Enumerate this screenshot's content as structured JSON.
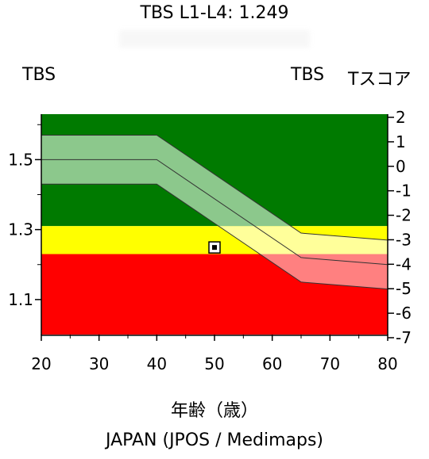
{
  "header": {
    "title": "TBS L1-L4: 1.249",
    "left_axis_label": "TBS",
    "right_tbs_label": "TBS",
    "right_tscore_label": "Tスコア"
  },
  "footer": {
    "xlabel": "年齢（歳）",
    "source": "JAPAN (JPOS / Medimaps)"
  },
  "colors": {
    "green": "#007a00",
    "yellow": "#ffff00",
    "red": "#ff0000",
    "band_green": "#8cc88c",
    "band_yellow": "#ffff9a",
    "band_red": "#ff8080"
  },
  "chart_data": {
    "type": "line",
    "xlabel": "年齢（歳）",
    "ylabel": "TBS",
    "y2label": "Tスコア",
    "xlim": [
      20,
      80
    ],
    "ylim": [
      1.0,
      1.63
    ],
    "x_ticks": [
      20,
      30,
      40,
      50,
      60,
      70,
      80
    ],
    "y_ticks": [
      1.1,
      1.3,
      1.5
    ],
    "y_ticklabels": [
      "1.1",
      "1.3",
      "1.5"
    ],
    "y2_ticks": [
      2,
      1,
      0,
      -1,
      -2,
      -3,
      -4,
      -5,
      -6,
      -7
    ],
    "y2_ticklabels": [
      "2",
      "1",
      "0",
      "-1",
      "-2",
      "-3",
      "-4",
      "-5",
      "-6",
      "-7"
    ],
    "zones": [
      {
        "name": "green",
        "from": 1.31,
        "to": 1.63
      },
      {
        "name": "yellow",
        "from": 1.23,
        "to": 1.31
      },
      {
        "name": "red",
        "from": 1.0,
        "to": 1.23
      }
    ],
    "reference": {
      "x": [
        20,
        40,
        65,
        80
      ],
      "mean": [
        1.5,
        1.5,
        1.22,
        1.2
      ],
      "upper": [
        1.57,
        1.57,
        1.29,
        1.27
      ],
      "lower": [
        1.43,
        1.43,
        1.15,
        1.13
      ]
    },
    "patient": {
      "age": 50,
      "tbs": 1.249
    }
  }
}
